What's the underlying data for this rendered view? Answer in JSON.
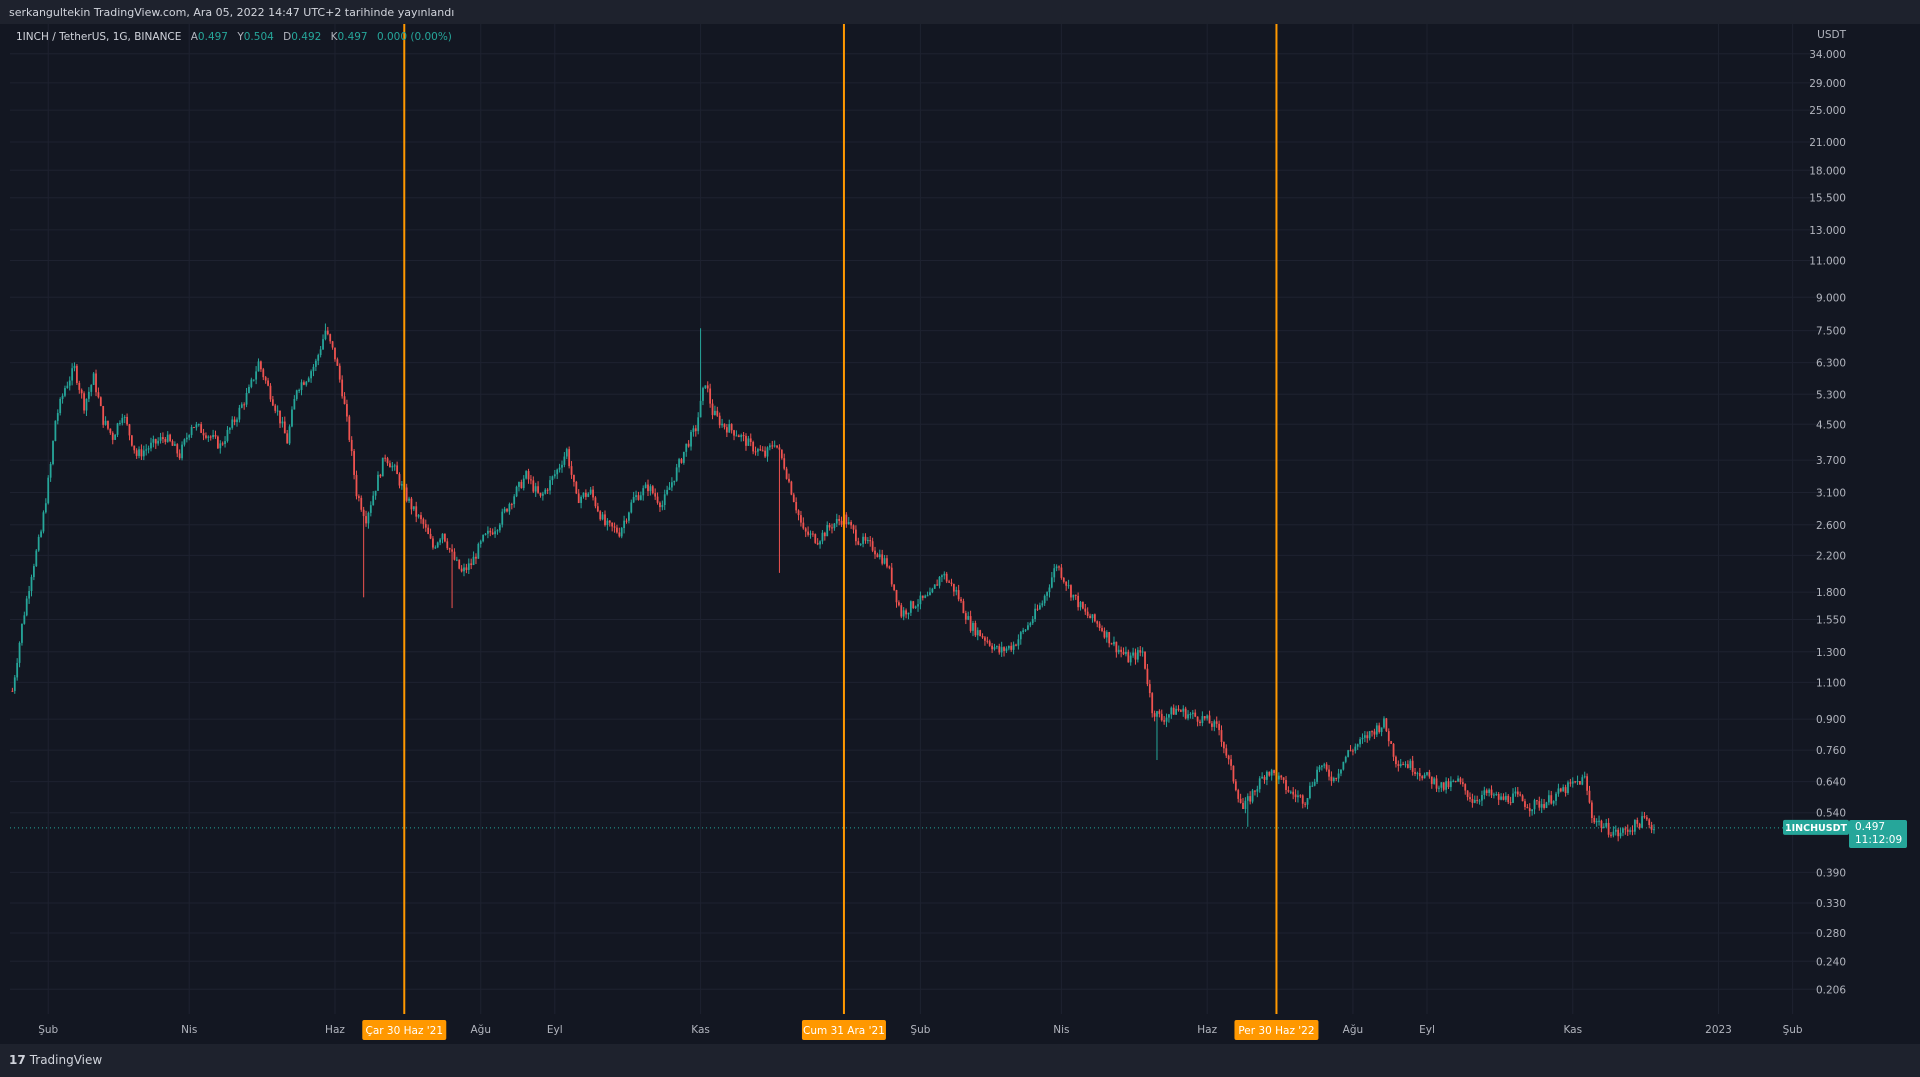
{
  "header": {
    "publisher_line": "serkangultekin TradingView.com, Ara 05, 2022 14:47 UTC+2 tarihinde yayınlandı"
  },
  "legend": {
    "symbol_line": "1INCH / TetherUS, 1G, BINANCE",
    "o_label": "A",
    "o_value": "0.497",
    "h_label": "Y",
    "h_value": "0.504",
    "l_label": "D",
    "l_value": "0.492",
    "c_label": "K",
    "c_value": "0.497",
    "change": "0.000 (0.00%)"
  },
  "footer": {
    "logo_mark": "17",
    "brand": "TradingView"
  },
  "colors": {
    "background": "#131722",
    "up": "#26a69a",
    "down": "#ef5350",
    "marker": "#ff9800",
    "grid": "#1e2230"
  },
  "chart_data": {
    "type": "candlestick",
    "symbol": "1INCHUSDT",
    "y_scale": "log",
    "y_unit": "USDT",
    "ylim": [
      0.18,
      40
    ],
    "x_range": [
      "2021-01-16",
      "2023-02-20"
    ],
    "y_ticks": [
      34,
      29,
      25,
      21,
      18,
      15.5,
      13,
      11,
      9,
      7.5,
      6.3,
      5.3,
      4.5,
      3.7,
      3.1,
      2.6,
      2.2,
      1.8,
      1.55,
      1.3,
      1.1,
      0.9,
      0.76,
      0.64,
      0.54,
      0.39,
      0.33,
      0.28,
      0.24,
      0.206
    ],
    "y_tick_labels": [
      "34.000",
      "29.000",
      "25.000",
      "21.000",
      "18.000",
      "15.500",
      "13.000",
      "11.000",
      "9.000",
      "7.500",
      "6.300",
      "5.300",
      "4.500",
      "3.700",
      "3.100",
      "2.600",
      "2.200",
      "1.800",
      "1.550",
      "1.300",
      "1.100",
      "0.900",
      "0.760",
      "0.640",
      "0.540",
      "0.390",
      "0.330",
      "0.280",
      "0.240",
      "0.206"
    ],
    "x_ticks": [
      {
        "date": "2021-02-01",
        "label": "Şub"
      },
      {
        "date": "2021-04-01",
        "label": "Nis"
      },
      {
        "date": "2021-06-01",
        "label": "Haz"
      },
      {
        "date": "2021-08-01",
        "label": "Ağu"
      },
      {
        "date": "2021-09-01",
        "label": "Eyl"
      },
      {
        "date": "2021-11-01",
        "label": "Kas"
      },
      {
        "date": "2022-02-01",
        "label": "Şub"
      },
      {
        "date": "2022-04-01",
        "label": "Nis"
      },
      {
        "date": "2022-06-01",
        "label": "Haz"
      },
      {
        "date": "2022-08-01",
        "label": "Ağu"
      },
      {
        "date": "2022-09-01",
        "label": "Eyl"
      },
      {
        "date": "2022-11-01",
        "label": "Kas"
      },
      {
        "date": "2023-01-01",
        "label": "2023"
      },
      {
        "date": "2023-02-01",
        "label": "Şub"
      }
    ],
    "vertical_markers": [
      {
        "date": "2021-06-30",
        "label": "Çar 30 Haz '21"
      },
      {
        "date": "2021-12-31",
        "label": "Cum 31 Ara '21"
      },
      {
        "date": "2022-06-30",
        "label": "Per 30 Haz '22"
      }
    ],
    "last_price": {
      "value": 0.497,
      "label": "0.497",
      "symbol_label": "1INCHUSDT",
      "countdown": "11:12:09"
    },
    "price_path": [
      [
        "2021-01-17",
        1.05
      ],
      [
        "2021-01-21",
        1.5
      ],
      [
        "2021-01-25",
        2.0
      ],
      [
        "2021-01-29",
        2.5
      ],
      [
        "2021-02-02",
        3.6
      ],
      [
        "2021-02-04",
        4.6
      ],
      [
        "2021-02-08",
        5.5
      ],
      [
        "2021-02-12",
        6.1
      ],
      [
        "2021-02-16",
        5.0
      ],
      [
        "2021-02-20",
        5.8
      ],
      [
        "2021-02-24",
        4.6
      ],
      [
        "2021-02-28",
        4.2
      ],
      [
        "2021-03-04",
        4.8
      ],
      [
        "2021-03-10",
        3.8
      ],
      [
        "2021-03-16",
        4.0
      ],
      [
        "2021-03-22",
        4.2
      ],
      [
        "2021-03-28",
        3.8
      ],
      [
        "2021-04-02",
        4.5
      ],
      [
        "2021-04-08",
        4.3
      ],
      [
        "2021-04-14",
        4.0
      ],
      [
        "2021-04-20",
        4.6
      ],
      [
        "2021-04-26",
        5.4
      ],
      [
        "2021-04-30",
        6.3
      ],
      [
        "2021-05-04",
        5.5
      ],
      [
        "2021-05-08",
        4.8
      ],
      [
        "2021-05-12",
        4.1
      ],
      [
        "2021-05-16",
        5.5
      ],
      [
        "2021-05-20",
        5.8
      ],
      [
        "2021-05-24",
        6.3
      ],
      [
        "2021-05-28",
        7.5
      ],
      [
        "2021-06-01",
        6.5
      ],
      [
        "2021-06-04",
        5.4
      ],
      [
        "2021-06-07",
        4.2
      ],
      [
        "2021-06-10",
        3.1
      ],
      [
        "2021-06-14",
        2.7
      ],
      [
        "2021-06-18",
        3.2
      ],
      [
        "2021-06-22",
        3.8
      ],
      [
        "2021-06-26",
        3.5
      ],
      [
        "2021-06-30",
        3.1
      ],
      [
        "2021-07-04",
        2.8
      ],
      [
        "2021-07-08",
        2.6
      ],
      [
        "2021-07-12",
        2.3
      ],
      [
        "2021-07-16",
        2.5
      ],
      [
        "2021-07-20",
        2.2
      ],
      [
        "2021-07-24",
        2.0
      ],
      [
        "2021-07-28",
        2.1
      ],
      [
        "2021-08-02",
        2.4
      ],
      [
        "2021-08-08",
        2.6
      ],
      [
        "2021-08-14",
        3.0
      ],
      [
        "2021-08-20",
        3.4
      ],
      [
        "2021-08-26",
        3.0
      ],
      [
        "2021-09-02",
        3.5
      ],
      [
        "2021-09-06",
        3.9
      ],
      [
        "2021-09-10",
        3.0
      ],
      [
        "2021-09-16",
        3.1
      ],
      [
        "2021-09-22",
        2.6
      ],
      [
        "2021-09-28",
        2.5
      ],
      [
        "2021-10-04",
        3.0
      ],
      [
        "2021-10-10",
        3.2
      ],
      [
        "2021-10-16",
        2.9
      ],
      [
        "2021-10-22",
        3.5
      ],
      [
        "2021-10-26",
        4.0
      ],
      [
        "2021-10-30",
        4.4
      ],
      [
        "2021-11-03",
        5.7
      ],
      [
        "2021-11-06",
        4.8
      ],
      [
        "2021-11-10",
        4.5
      ],
      [
        "2021-11-16",
        4.3
      ],
      [
        "2021-11-22",
        4.0
      ],
      [
        "2021-11-28",
        3.8
      ],
      [
        "2021-12-02",
        4.1
      ],
      [
        "2021-12-06",
        3.6
      ],
      [
        "2021-12-10",
        3.0
      ],
      [
        "2021-12-14",
        2.5
      ],
      [
        "2021-12-20",
        2.4
      ],
      [
        "2021-12-26",
        2.6
      ],
      [
        "2021-12-31",
        2.7
      ],
      [
        "2022-01-06",
        2.4
      ],
      [
        "2022-01-12",
        2.3
      ],
      [
        "2022-01-18",
        2.1
      ],
      [
        "2022-01-24",
        1.6
      ],
      [
        "2022-01-30",
        1.7
      ],
      [
        "2022-02-05",
        1.75
      ],
      [
        "2022-02-10",
        2.0
      ],
      [
        "2022-02-16",
        1.8
      ],
      [
        "2022-02-22",
        1.5
      ],
      [
        "2022-02-28",
        1.4
      ],
      [
        "2022-03-06",
        1.3
      ],
      [
        "2022-03-12",
        1.35
      ],
      [
        "2022-03-18",
        1.5
      ],
      [
        "2022-03-24",
        1.7
      ],
      [
        "2022-03-30",
        2.1
      ],
      [
        "2022-04-05",
        1.8
      ],
      [
        "2022-04-11",
        1.6
      ],
      [
        "2022-04-17",
        1.5
      ],
      [
        "2022-04-23",
        1.35
      ],
      [
        "2022-04-29",
        1.25
      ],
      [
        "2022-05-05",
        1.3
      ],
      [
        "2022-05-09",
        0.95
      ],
      [
        "2022-05-13",
        0.9
      ],
      [
        "2022-05-19",
        0.95
      ],
      [
        "2022-05-25",
        0.92
      ],
      [
        "2022-05-31",
        0.9
      ],
      [
        "2022-06-06",
        0.85
      ],
      [
        "2022-06-12",
        0.65
      ],
      [
        "2022-06-16",
        0.55
      ],
      [
        "2022-06-20",
        0.6
      ],
      [
        "2022-06-26",
        0.68
      ],
      [
        "2022-06-30",
        0.66
      ],
      [
        "2022-07-06",
        0.6
      ],
      [
        "2022-07-12",
        0.58
      ],
      [
        "2022-07-18",
        0.7
      ],
      [
        "2022-07-24",
        0.65
      ],
      [
        "2022-07-30",
        0.75
      ],
      [
        "2022-08-05",
        0.8
      ],
      [
        "2022-08-10",
        0.85
      ],
      [
        "2022-08-14",
        0.88
      ],
      [
        "2022-08-19",
        0.72
      ],
      [
        "2022-08-25",
        0.7
      ],
      [
        "2022-08-31",
        0.66
      ],
      [
        "2022-09-08",
        0.62
      ],
      [
        "2022-09-14",
        0.64
      ],
      [
        "2022-09-20",
        0.58
      ],
      [
        "2022-09-26",
        0.6
      ],
      [
        "2022-10-02",
        0.58
      ],
      [
        "2022-10-08",
        0.59
      ],
      [
        "2022-10-14",
        0.56
      ],
      [
        "2022-10-20",
        0.57
      ],
      [
        "2022-10-26",
        0.6
      ],
      [
        "2022-11-01",
        0.63
      ],
      [
        "2022-11-06",
        0.65
      ],
      [
        "2022-11-09",
        0.53
      ],
      [
        "2022-11-14",
        0.5
      ],
      [
        "2022-11-20",
        0.48
      ],
      [
        "2022-11-26",
        0.5
      ],
      [
        "2022-12-01",
        0.52
      ],
      [
        "2022-12-05",
        0.497
      ]
    ],
    "wick_extremes": [
      {
        "date": "2021-06-13",
        "low": 1.75
      },
      {
        "date": "2021-07-20",
        "low": 1.65
      },
      {
        "date": "2021-11-01",
        "high": 7.6
      },
      {
        "date": "2021-12-04",
        "low": 2.0
      },
      {
        "date": "2022-05-11",
        "low": 0.72
      },
      {
        "date": "2022-06-18",
        "low": 0.5
      },
      {
        "date": "2021-05-28",
        "high": 7.8
      }
    ]
  }
}
